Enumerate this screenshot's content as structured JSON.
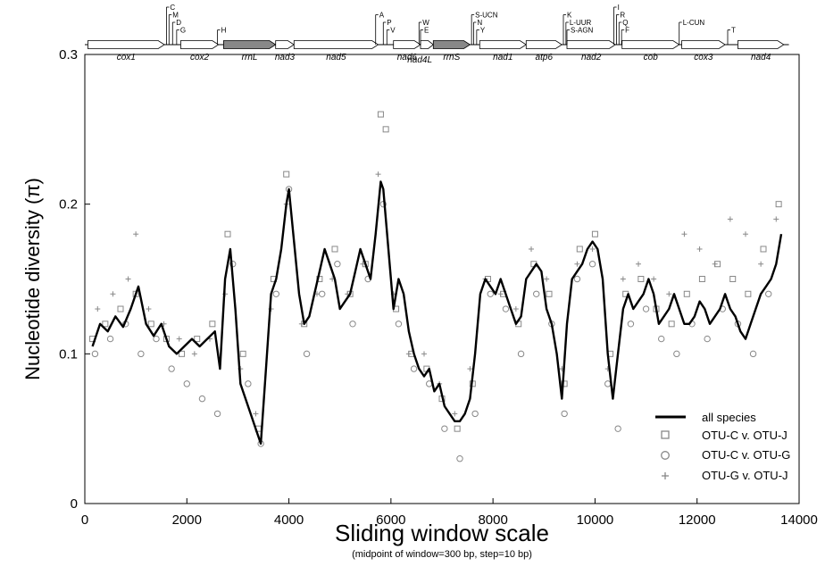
{
  "chart_data": {
    "type": "line",
    "xlabel": "Sliding window scale",
    "xsublabel": "(midpoint of window=300 bp, step=10 bp)",
    "ylabel": "Nucleotide diversity (π)",
    "xlim": [
      0,
      14000
    ],
    "ylim": [
      0,
      0.3
    ],
    "x_ticks": [
      0,
      2000,
      4000,
      6000,
      8000,
      10000,
      12000,
      14000
    ],
    "y_ticks": [
      0,
      0.1,
      0.2,
      0.3
    ],
    "x_tick_labels": [
      "0",
      "2000",
      "4000",
      "6000",
      "8000",
      "10000",
      "12000",
      "14000"
    ],
    "y_tick_labels": [
      "0",
      "0.1",
      "0.2",
      "0.3"
    ],
    "legend_position": "bottom-right",
    "series": [
      {
        "name": "all species",
        "style": "line",
        "color": "#000000",
        "x": [
          150,
          300,
          450,
          600,
          750,
          900,
          1050,
          1200,
          1350,
          1500,
          1650,
          1800,
          1950,
          2100,
          2250,
          2400,
          2550,
          2650,
          2750,
          2850,
          2950,
          3050,
          3150,
          3250,
          3350,
          3450,
          3550,
          3650,
          3750,
          3850,
          3950,
          4000,
          4100,
          4200,
          4300,
          4400,
          4500,
          4600,
          4700,
          4800,
          4900,
          5000,
          5100,
          5200,
          5300,
          5400,
          5500,
          5600,
          5700,
          5800,
          5850,
          5950,
          6050,
          6150,
          6250,
          6350,
          6450,
          6550,
          6650,
          6750,
          6850,
          6950,
          7050,
          7150,
          7250,
          7350,
          7450,
          7550,
          7650,
          7750,
          7850,
          7950,
          8050,
          8150,
          8250,
          8350,
          8450,
          8550,
          8650,
          8750,
          8850,
          8950,
          9050,
          9150,
          9250,
          9350,
          9450,
          9550,
          9650,
          9750,
          9850,
          9950,
          10050,
          10150,
          10250,
          10350,
          10450,
          10550,
          10650,
          10750,
          10850,
          10950,
          11050,
          11150,
          11250,
          11350,
          11450,
          11550,
          11650,
          11750,
          11850,
          11950,
          12050,
          12150,
          12250,
          12350,
          12450,
          12550,
          12650,
          12750,
          12850,
          12950,
          13050,
          13150,
          13250,
          13350,
          13450,
          13550,
          13650
        ],
        "y": [
          0.105,
          0.12,
          0.115,
          0.125,
          0.118,
          0.13,
          0.145,
          0.12,
          0.112,
          0.12,
          0.105,
          0.1,
          0.105,
          0.11,
          0.105,
          0.11,
          0.115,
          0.09,
          0.15,
          0.17,
          0.13,
          0.08,
          0.07,
          0.06,
          0.05,
          0.04,
          0.09,
          0.14,
          0.15,
          0.17,
          0.2,
          0.21,
          0.175,
          0.14,
          0.12,
          0.125,
          0.14,
          0.155,
          0.17,
          0.16,
          0.15,
          0.13,
          0.135,
          0.14,
          0.155,
          0.17,
          0.16,
          0.15,
          0.18,
          0.215,
          0.21,
          0.17,
          0.13,
          0.15,
          0.14,
          0.115,
          0.1,
          0.09,
          0.085,
          0.09,
          0.075,
          0.08,
          0.065,
          0.06,
          0.055,
          0.055,
          0.06,
          0.07,
          0.1,
          0.14,
          0.15,
          0.145,
          0.14,
          0.15,
          0.14,
          0.13,
          0.12,
          0.125,
          0.15,
          0.155,
          0.16,
          0.155,
          0.13,
          0.12,
          0.1,
          0.07,
          0.12,
          0.15,
          0.155,
          0.16,
          0.17,
          0.175,
          0.17,
          0.15,
          0.1,
          0.07,
          0.1,
          0.13,
          0.14,
          0.13,
          0.135,
          0.14,
          0.15,
          0.14,
          0.12,
          0.125,
          0.13,
          0.14,
          0.13,
          0.12,
          0.12,
          0.125,
          0.135,
          0.13,
          0.12,
          0.125,
          0.13,
          0.14,
          0.13,
          0.125,
          0.115,
          0.11,
          0.12,
          0.13,
          0.14,
          0.145,
          0.15,
          0.16,
          0.18
        ]
      },
      {
        "name": "OTU-C v. OTU-J",
        "style": "square-markers",
        "color": "#888888",
        "x": [
          150,
          400,
          700,
          1000,
          1300,
          1600,
          1900,
          2200,
          2500,
          2800,
          3100,
          3400,
          3700,
          3950,
          4300,
          4600,
          4900,
          5200,
          5500,
          5800,
          5900,
          6100,
          6400,
          6700,
          7000,
          7300,
          7600,
          7900,
          8200,
          8500,
          8800,
          9100,
          9400,
          9700,
          10000,
          10300,
          10600,
          10900,
          11200,
          11500,
          11800,
          12100,
          12400,
          12700,
          13000,
          13300,
          13600
        ],
        "y": [
          0.11,
          0.12,
          0.13,
          0.14,
          0.12,
          0.11,
          0.1,
          0.11,
          0.12,
          0.18,
          0.1,
          0.05,
          0.15,
          0.22,
          0.12,
          0.15,
          0.17,
          0.14,
          0.16,
          0.26,
          0.25,
          0.13,
          0.1,
          0.09,
          0.07,
          0.05,
          0.08,
          0.15,
          0.14,
          0.12,
          0.16,
          0.14,
          0.08,
          0.17,
          0.18,
          0.1,
          0.14,
          0.15,
          0.13,
          0.12,
          0.14,
          0.15,
          0.16,
          0.15,
          0.14,
          0.17,
          0.2
        ]
      },
      {
        "name": "OTU-C v. OTU-G",
        "style": "circle-markers",
        "color": "#888888",
        "x": [
          200,
          500,
          800,
          1100,
          1400,
          1700,
          2000,
          2300,
          2600,
          2900,
          3200,
          3450,
          3750,
          4000,
          4350,
          4650,
          4950,
          5250,
          5550,
          5850,
          6150,
          6450,
          6750,
          7050,
          7350,
          7650,
          7950,
          8250,
          8550,
          8850,
          9150,
          9400,
          9650,
          9950,
          10250,
          10450,
          10700,
          11000,
          11300,
          11600,
          11900,
          12200,
          12500,
          12800,
          13100,
          13400
        ],
        "y": [
          0.1,
          0.11,
          0.12,
          0.1,
          0.11,
          0.09,
          0.08,
          0.07,
          0.06,
          0.16,
          0.08,
          0.04,
          0.14,
          0.21,
          0.1,
          0.14,
          0.16,
          0.12,
          0.15,
          0.2,
          0.12,
          0.09,
          0.08,
          0.05,
          0.03,
          0.06,
          0.14,
          0.13,
          0.1,
          0.14,
          0.12,
          0.06,
          0.15,
          0.16,
          0.08,
          0.05,
          0.12,
          0.13,
          0.11,
          0.1,
          0.12,
          0.11,
          0.13,
          0.12,
          0.1,
          0.14
        ]
      },
      {
        "name": "OTU-G v. OTU-J",
        "style": "plus-markers",
        "color": "#888888",
        "x": [
          250,
          550,
          850,
          1000,
          1250,
          1550,
          1850,
          2150,
          2450,
          2750,
          3050,
          3350,
          3650,
          3950,
          4250,
          4550,
          4850,
          5150,
          5450,
          5750,
          6050,
          6350,
          6650,
          6950,
          7250,
          7550,
          7850,
          8150,
          8450,
          8750,
          9050,
          9350,
          9650,
          9950,
          10250,
          10550,
          10850,
          11150,
          11450,
          11750,
          12050,
          12350,
          12650,
          12950,
          13250,
          13550
        ],
        "y": [
          0.13,
          0.14,
          0.15,
          0.18,
          0.13,
          0.12,
          0.11,
          0.1,
          0.11,
          0.14,
          0.09,
          0.06,
          0.13,
          0.2,
          0.12,
          0.14,
          0.15,
          0.14,
          0.16,
          0.22,
          0.14,
          0.1,
          0.1,
          0.08,
          0.06,
          0.09,
          0.15,
          0.14,
          0.13,
          0.17,
          0.15,
          0.09,
          0.16,
          0.17,
          0.09,
          0.15,
          0.16,
          0.15,
          0.14,
          0.18,
          0.17,
          0.16,
          0.19,
          0.18,
          0.16,
          0.19
        ]
      }
    ],
    "gene_map": [
      {
        "label": "cox1",
        "start": 60,
        "end": 1560,
        "strand": "+"
      },
      {
        "label": "cox2",
        "start": 1880,
        "end": 2620,
        "strand": "+"
      },
      {
        "label": "rrnL",
        "start": 2720,
        "end": 3740,
        "strand": "+",
        "fill": "#888888"
      },
      {
        "label": "nad3",
        "start": 3740,
        "end": 4100,
        "strand": "+"
      },
      {
        "label": "nad5",
        "start": 4100,
        "end": 5750,
        "strand": "+"
      },
      {
        "label": "nad6",
        "start": 6050,
        "end": 6580,
        "strand": "+"
      },
      {
        "label": "nad4L",
        "start": 6580,
        "end": 6830,
        "strand": "+",
        "label_below": true
      },
      {
        "label": "rrnS",
        "start": 6830,
        "end": 7550,
        "strand": "+",
        "fill": "#888888"
      },
      {
        "label": "nad1",
        "start": 7740,
        "end": 8650,
        "strand": "+"
      },
      {
        "label": "atp6",
        "start": 8650,
        "end": 9350,
        "strand": "+"
      },
      {
        "label": "nad2",
        "start": 9450,
        "end": 10400,
        "strand": "+"
      },
      {
        "label": "cob",
        "start": 10530,
        "end": 11650,
        "strand": "+"
      },
      {
        "label": "cox3",
        "start": 11700,
        "end": 12550,
        "strand": "+"
      },
      {
        "label": "nad4",
        "start": 12800,
        "end": 13700,
        "strand": "+"
      }
    ],
    "trna_labels": [
      {
        "label": "C",
        "pos": 1600,
        "row": 0
      },
      {
        "label": "M",
        "pos": 1650,
        "row": 1
      },
      {
        "label": "D",
        "pos": 1720,
        "row": 2
      },
      {
        "label": "G",
        "pos": 1800,
        "row": 3
      },
      {
        "label": "H",
        "pos": 2600,
        "row": 3
      },
      {
        "label": "A",
        "pos": 5700,
        "row": 1
      },
      {
        "label": "P",
        "pos": 5850,
        "row": 2
      },
      {
        "label": "V",
        "pos": 5920,
        "row": 3
      },
      {
        "label": "W",
        "pos": 6550,
        "row": 2
      },
      {
        "label": "E",
        "pos": 6580,
        "row": 3
      },
      {
        "label": "S-UCN",
        "pos": 7580,
        "row": 1
      },
      {
        "label": "N",
        "pos": 7620,
        "row": 2
      },
      {
        "label": "Y",
        "pos": 7680,
        "row": 3
      },
      {
        "label": "K",
        "pos": 9380,
        "row": 1
      },
      {
        "label": "L-UUR",
        "pos": 9430,
        "row": 2
      },
      {
        "label": "S-AGN",
        "pos": 9450,
        "row": 3
      },
      {
        "label": "I",
        "pos": 10370,
        "row": 0
      },
      {
        "label": "R",
        "pos": 10420,
        "row": 1
      },
      {
        "label": "Q",
        "pos": 10470,
        "row": 2
      },
      {
        "label": "F",
        "pos": 10520,
        "row": 3
      },
      {
        "label": "L-CUN",
        "pos": 11650,
        "row": 2
      },
      {
        "label": "T",
        "pos": 12600,
        "row": 3
      }
    ]
  }
}
